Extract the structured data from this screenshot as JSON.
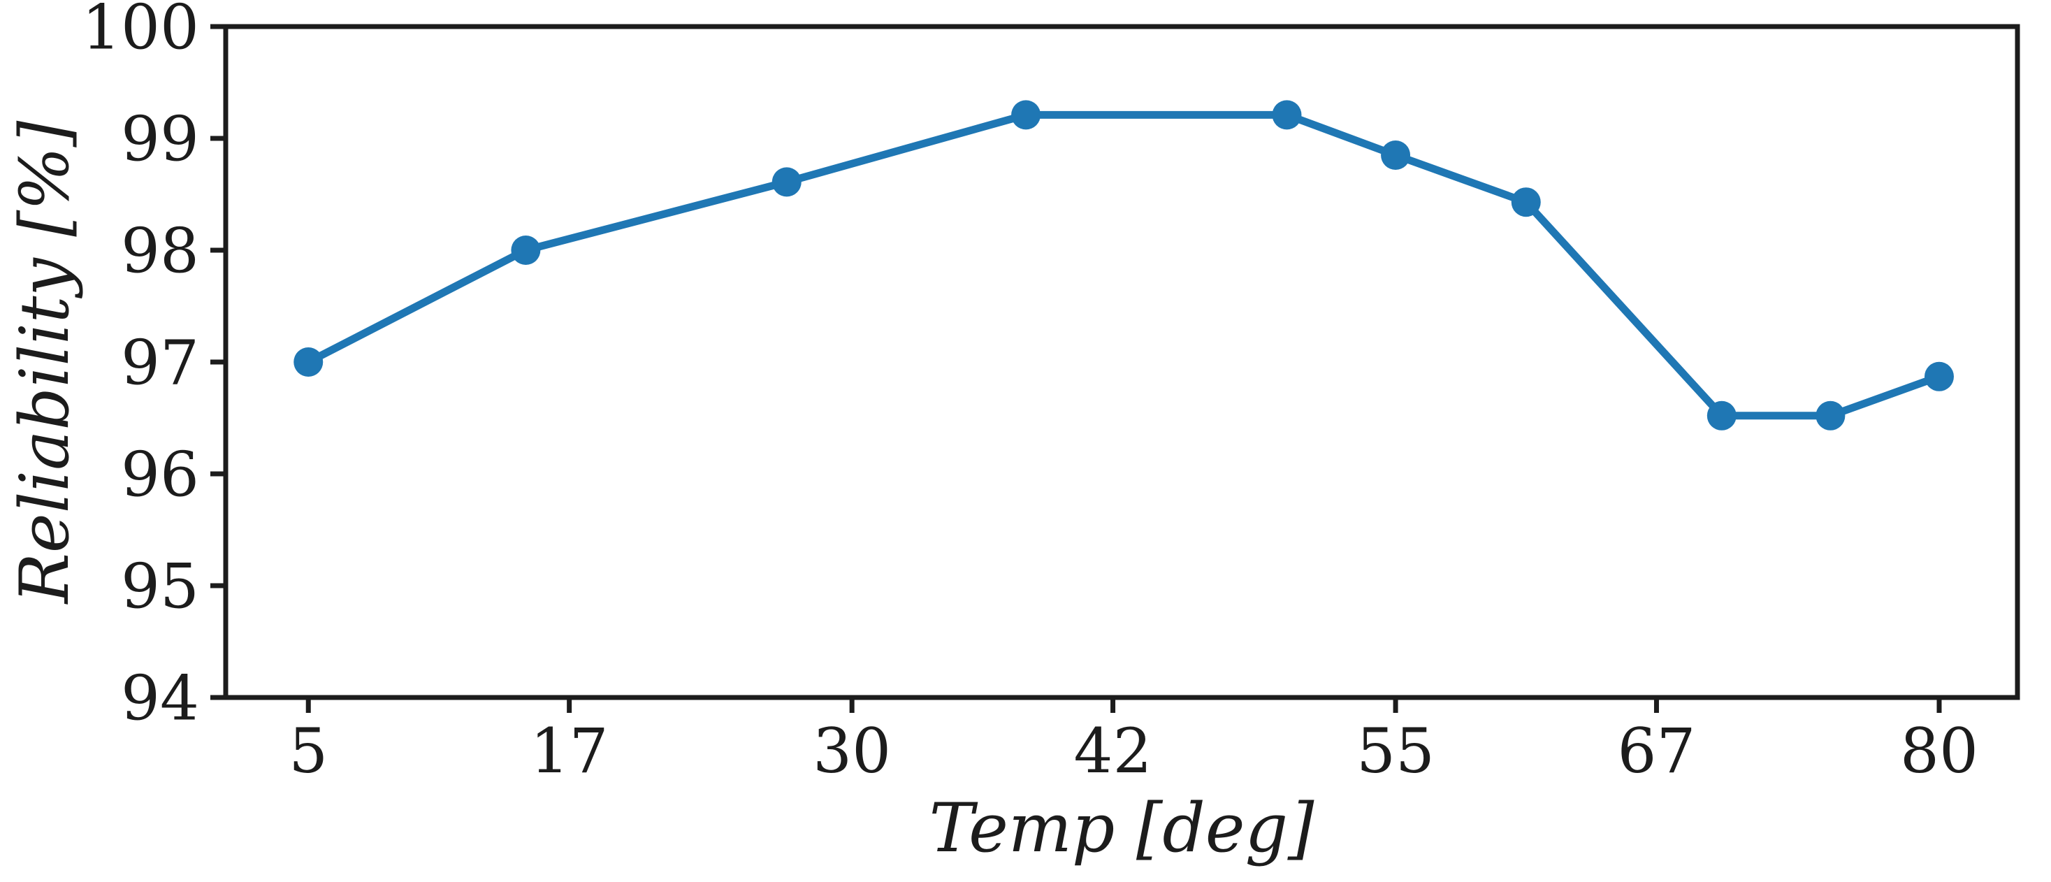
{
  "chart_data": {
    "type": "line",
    "title": "",
    "xlabel": "Temp [deg]",
    "ylabel": "Reliability [%]",
    "x": [
      5,
      15,
      27,
      38,
      50,
      55,
      61,
      70,
      75,
      80
    ],
    "series": [
      {
        "name": "Reliability",
        "values": [
          97.0,
          98.0,
          98.61,
          99.21,
          99.21,
          98.85,
          98.43,
          96.52,
          96.52,
          96.87
        ]
      }
    ],
    "x_ticks": [
      5,
      17,
      30,
      42,
      55,
      67,
      80
    ],
    "y_ticks": [
      94,
      95,
      96,
      97,
      98,
      99,
      100
    ],
    "xlim": [
      1.2,
      83.6
    ],
    "ylim": [
      94,
      100
    ],
    "grid": false,
    "legend": "none",
    "marker": "circle",
    "line_color": "#1f77b4",
    "axis_color": "#1c1c1c",
    "background_color": "#ffffff"
  }
}
